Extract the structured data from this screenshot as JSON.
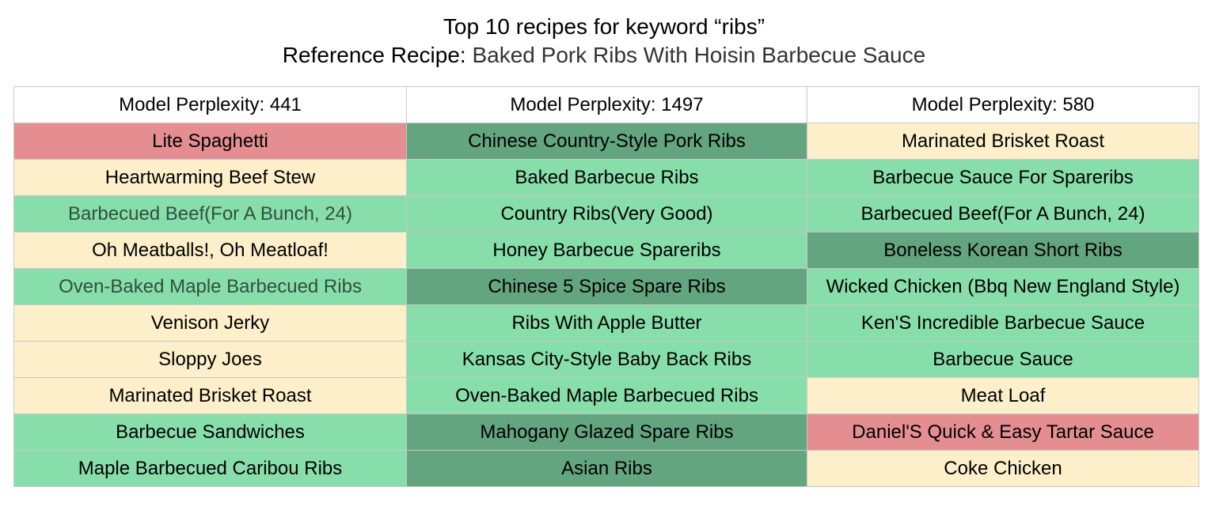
{
  "title": "Top 10 recipes for keyword “ribs”",
  "subtitle": {
    "prefix": "Reference Recipe: ",
    "recipe": "Baked Pork Ribs With Hoisin Barbecue Sauce"
  },
  "colors": {
    "red": "#e48e91",
    "cream": "#fdefc9",
    "light_green": "#87deaa",
    "dark_green": "#63a57f",
    "header_bg": "#ffffff",
    "border": "#c8c8c8"
  },
  "table": {
    "headers": [
      "Model Perplexity: 441",
      "Model Perplexity: 1497",
      "Model Perplexity: 580"
    ],
    "rows": [
      [
        {
          "text": "Lite Spaghetti",
          "color": "red"
        },
        {
          "text": "Chinese Country-Style Pork Ribs",
          "color": "dark_green"
        },
        {
          "text": "Marinated Brisket Roast",
          "color": "cream"
        }
      ],
      [
        {
          "text": "Heartwarming Beef Stew",
          "color": "cream"
        },
        {
          "text": "Baked Barbecue Ribs",
          "color": "light_green"
        },
        {
          "text": "Barbecue Sauce For Spareribs",
          "color": "light_green"
        }
      ],
      [
        {
          "text": "Barbecued Beef(For A Bunch, 24)",
          "color": "light_green",
          "muted": true
        },
        {
          "text": "Country Ribs(Very Good)",
          "color": "light_green"
        },
        {
          "text": "Barbecued Beef(For A Bunch, 24)",
          "color": "light_green"
        }
      ],
      [
        {
          "text": "Oh Meatballs!, Oh Meatloaf!",
          "color": "cream"
        },
        {
          "text": "Honey Barbecue Spareribs",
          "color": "light_green"
        },
        {
          "text": "Boneless Korean Short Ribs",
          "color": "dark_green"
        }
      ],
      [
        {
          "text": "Oven-Baked Maple Barbecued Ribs",
          "color": "light_green",
          "muted": true
        },
        {
          "text": "Chinese 5 Spice Spare Ribs",
          "color": "dark_green"
        },
        {
          "text": "Wicked Chicken (Bbq New England Style)",
          "color": "light_green"
        }
      ],
      [
        {
          "text": "Venison Jerky",
          "color": "cream"
        },
        {
          "text": "Ribs With Apple Butter",
          "color": "light_green"
        },
        {
          "text": "Ken'S Incredible Barbecue Sauce",
          "color": "light_green"
        }
      ],
      [
        {
          "text": "Sloppy Joes",
          "color": "cream"
        },
        {
          "text": "Kansas City-Style Baby Back Ribs",
          "color": "light_green"
        },
        {
          "text": "Barbecue Sauce",
          "color": "light_green"
        }
      ],
      [
        {
          "text": "Marinated Brisket Roast",
          "color": "cream"
        },
        {
          "text": "Oven-Baked Maple Barbecued Ribs",
          "color": "light_green"
        },
        {
          "text": "Meat Loaf",
          "color": "cream"
        }
      ],
      [
        {
          "text": "Barbecue Sandwiches",
          "color": "light_green"
        },
        {
          "text": "Mahogany Glazed Spare Ribs",
          "color": "dark_green"
        },
        {
          "text": "Daniel'S Quick & Easy Tartar Sauce",
          "color": "red"
        }
      ],
      [
        {
          "text": "Maple Barbecued Caribou Ribs",
          "color": "light_green"
        },
        {
          "text": "Asian Ribs",
          "color": "dark_green"
        },
        {
          "text": "Coke Chicken",
          "color": "cream"
        }
      ]
    ]
  }
}
